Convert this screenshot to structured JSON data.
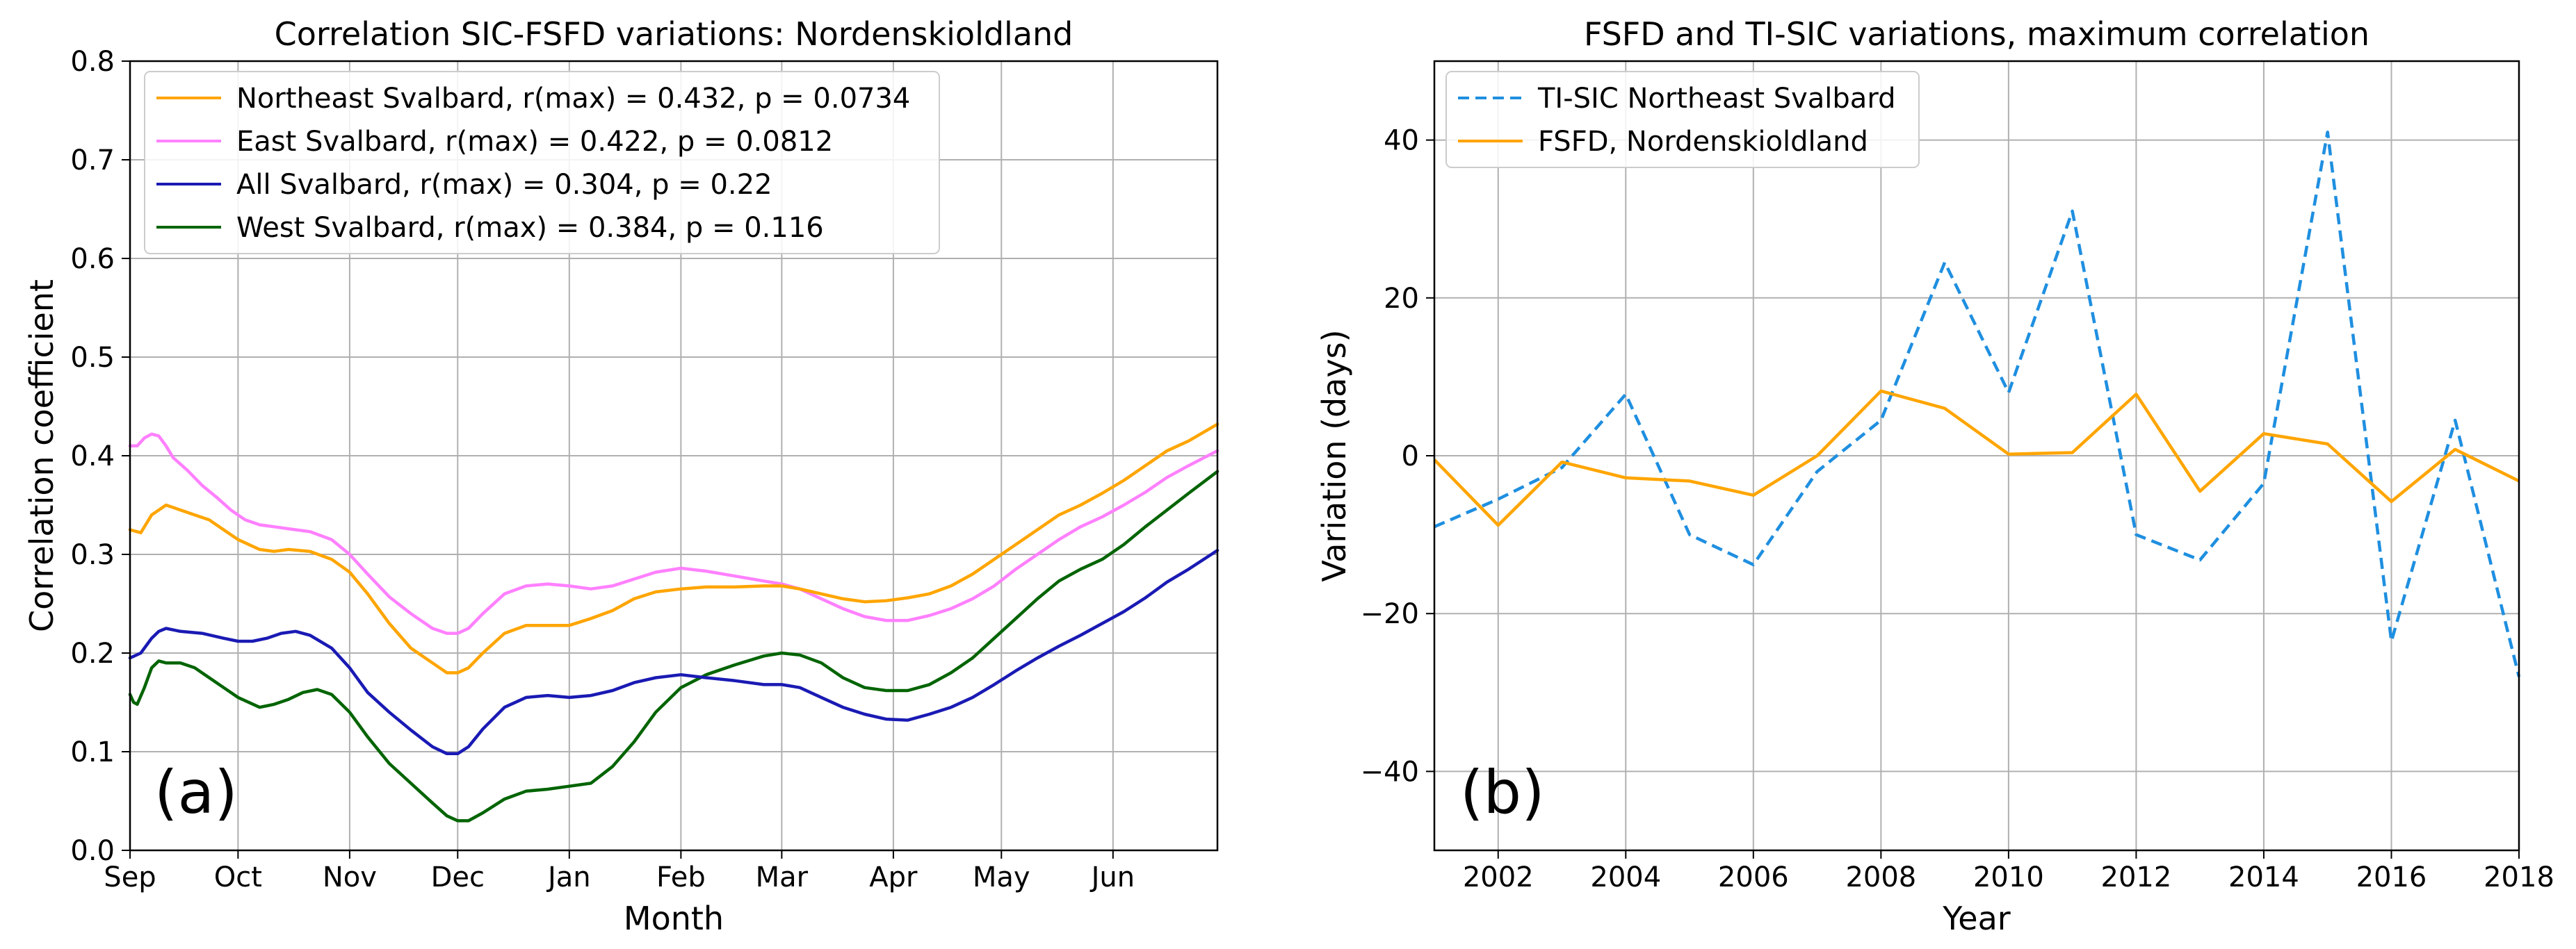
{
  "chart_data": [
    {
      "type": "line",
      "title": "Correlation SIC-FSFD variations: Nordenskioldland",
      "xlabel": "Month",
      "ylabel": "Correlation coefficient",
      "panel_label": "(a)",
      "x_unit": "days since 1 Sep",
      "xlim": [
        0,
        302
      ],
      "ylim": [
        0.0,
        0.8
      ],
      "grid": true,
      "legend_position": "upper-left",
      "x_ticks": [
        {
          "label": "Sep",
          "value": 0
        },
        {
          "label": "Oct",
          "value": 30
        },
        {
          "label": "Nov",
          "value": 61
        },
        {
          "label": "Dec",
          "value": 91
        },
        {
          "label": "Jan",
          "value": 122
        },
        {
          "label": "Feb",
          "value": 153
        },
        {
          "label": "Mar",
          "value": 181
        },
        {
          "label": "Apr",
          "value": 212
        },
        {
          "label": "May",
          "value": 242
        },
        {
          "label": "Jun",
          "value": 273
        }
      ],
      "y_ticks": [
        "0.0",
        "0.1",
        "0.2",
        "0.3",
        "0.4",
        "0.5",
        "0.6",
        "0.7",
        "0.8"
      ],
      "series": [
        {
          "name": "Northeast Svalbard, r(max) = 0.432, p = 0.0734",
          "color": "#ffa500",
          "style": "solid",
          "x": [
            0,
            3,
            6,
            10,
            14,
            18,
            22,
            26,
            30,
            36,
            40,
            44,
            50,
            56,
            61,
            66,
            72,
            78,
            84,
            88,
            91,
            94,
            98,
            104,
            110,
            116,
            122,
            128,
            134,
            140,
            146,
            153,
            160,
            168,
            176,
            181,
            186,
            192,
            198,
            204,
            210,
            216,
            222,
            228,
            234,
            240,
            246,
            252,
            258,
            264,
            270,
            276,
            282,
            288,
            294,
            302
          ],
          "values": [
            0.325,
            0.322,
            0.34,
            0.35,
            0.345,
            0.34,
            0.335,
            0.325,
            0.315,
            0.305,
            0.303,
            0.305,
            0.303,
            0.295,
            0.282,
            0.26,
            0.23,
            0.205,
            0.19,
            0.18,
            0.18,
            0.185,
            0.2,
            0.22,
            0.228,
            0.228,
            0.228,
            0.235,
            0.243,
            0.255,
            0.262,
            0.265,
            0.267,
            0.267,
            0.268,
            0.268,
            0.265,
            0.26,
            0.255,
            0.252,
            0.253,
            0.256,
            0.26,
            0.268,
            0.28,
            0.295,
            0.31,
            0.325,
            0.34,
            0.35,
            0.362,
            0.375,
            0.39,
            0.405,
            0.415,
            0.432
          ]
        },
        {
          "name": "East Svalbard, r(max) = 0.422, p = 0.0812",
          "color": "#ff80ff",
          "style": "solid",
          "x": [
            0,
            2,
            4,
            6,
            8,
            10,
            12,
            16,
            20,
            24,
            28,
            32,
            36,
            40,
            44,
            50,
            56,
            61,
            66,
            72,
            78,
            84,
            88,
            91,
            94,
            98,
            104,
            110,
            116,
            122,
            128,
            134,
            140,
            146,
            153,
            160,
            168,
            176,
            181,
            186,
            192,
            198,
            204,
            210,
            216,
            222,
            228,
            234,
            240,
            246,
            252,
            258,
            264,
            270,
            276,
            282,
            288,
            294,
            302
          ],
          "values": [
            0.41,
            0.41,
            0.418,
            0.422,
            0.42,
            0.41,
            0.398,
            0.385,
            0.37,
            0.358,
            0.345,
            0.335,
            0.33,
            0.328,
            0.326,
            0.323,
            0.315,
            0.3,
            0.28,
            0.257,
            0.24,
            0.225,
            0.22,
            0.22,
            0.225,
            0.24,
            0.26,
            0.268,
            0.27,
            0.268,
            0.265,
            0.268,
            0.275,
            0.282,
            0.286,
            0.283,
            0.278,
            0.273,
            0.27,
            0.265,
            0.255,
            0.245,
            0.237,
            0.233,
            0.233,
            0.238,
            0.245,
            0.255,
            0.268,
            0.285,
            0.3,
            0.315,
            0.328,
            0.338,
            0.35,
            0.363,
            0.378,
            0.39,
            0.405
          ]
        },
        {
          "name": "All Svalbard, r(max) = 0.304, p = 0.22",
          "color": "#1a1ab4",
          "style": "solid",
          "x": [
            0,
            3,
            6,
            8,
            10,
            14,
            20,
            26,
            30,
            34,
            38,
            42,
            46,
            50,
            56,
            61,
            66,
            72,
            78,
            84,
            88,
            91,
            94,
            98,
            104,
            110,
            116,
            122,
            128,
            134,
            140,
            146,
            153,
            160,
            168,
            176,
            181,
            186,
            192,
            198,
            204,
            210,
            216,
            222,
            228,
            234,
            240,
            246,
            252,
            258,
            264,
            270,
            276,
            282,
            288,
            294,
            302
          ],
          "values": [
            0.195,
            0.2,
            0.215,
            0.222,
            0.225,
            0.222,
            0.22,
            0.215,
            0.212,
            0.212,
            0.215,
            0.22,
            0.222,
            0.218,
            0.205,
            0.185,
            0.16,
            0.14,
            0.122,
            0.105,
            0.098,
            0.098,
            0.105,
            0.123,
            0.145,
            0.155,
            0.157,
            0.155,
            0.157,
            0.162,
            0.17,
            0.175,
            0.178,
            0.175,
            0.172,
            0.168,
            0.168,
            0.165,
            0.155,
            0.145,
            0.138,
            0.133,
            0.132,
            0.138,
            0.145,
            0.155,
            0.168,
            0.182,
            0.195,
            0.207,
            0.218,
            0.23,
            0.242,
            0.256,
            0.272,
            0.285,
            0.304
          ]
        },
        {
          "name": "West Svalbard, r(max) = 0.384, p = 0.116",
          "color": "#006400",
          "style": "solid",
          "x": [
            0,
            1,
            2,
            4,
            6,
            8,
            10,
            14,
            18,
            22,
            26,
            30,
            36,
            40,
            44,
            48,
            52,
            56,
            61,
            66,
            72,
            78,
            84,
            88,
            91,
            94,
            98,
            104,
            110,
            116,
            122,
            128,
            134,
            140,
            146,
            153,
            160,
            168,
            176,
            181,
            186,
            192,
            198,
            204,
            210,
            216,
            222,
            228,
            234,
            240,
            246,
            252,
            258,
            264,
            270,
            276,
            282,
            288,
            294,
            302
          ],
          "values": [
            0.158,
            0.15,
            0.148,
            0.165,
            0.185,
            0.192,
            0.19,
            0.19,
            0.185,
            0.175,
            0.165,
            0.155,
            0.145,
            0.148,
            0.153,
            0.16,
            0.163,
            0.158,
            0.14,
            0.115,
            0.088,
            0.068,
            0.048,
            0.035,
            0.03,
            0.03,
            0.038,
            0.052,
            0.06,
            0.062,
            0.065,
            0.068,
            0.085,
            0.11,
            0.14,
            0.165,
            0.178,
            0.188,
            0.197,
            0.2,
            0.198,
            0.19,
            0.175,
            0.165,
            0.162,
            0.162,
            0.168,
            0.18,
            0.195,
            0.215,
            0.235,
            0.255,
            0.273,
            0.285,
            0.295,
            0.31,
            0.328,
            0.345,
            0.362,
            0.384
          ]
        }
      ]
    },
    {
      "type": "line",
      "title": "FSFD and TI-SIC variations, maximum correlation",
      "xlabel": "Year",
      "ylabel": "Variation (days)",
      "panel_label": "(b)",
      "xlim": [
        2001,
        2018
      ],
      "ylim": [
        -50,
        50
      ],
      "grid": true,
      "legend_position": "upper-left",
      "x_ticks": [
        "2002",
        "2004",
        "2006",
        "2008",
        "2010",
        "2012",
        "2014",
        "2016",
        "2018"
      ],
      "y_ticks": [
        "−40",
        "−20",
        "0",
        "20",
        "40"
      ],
      "x": [
        2001,
        2002,
        2003,
        2004,
        2005,
        2006,
        2007,
        2008,
        2009,
        2010,
        2011,
        2012,
        2013,
        2014,
        2015,
        2016,
        2017,
        2018
      ],
      "series": [
        {
          "name": "TI-SIC Northeast Svalbard",
          "color": "#1f8fe0",
          "style": "dashed",
          "values": [
            -9,
            -5.5,
            -1.5,
            7.8,
            -10,
            -13.8,
            -2,
            4.5,
            24.5,
            8,
            31,
            -10,
            -13.2,
            -3.5,
            41,
            -23.5,
            4.5,
            -28
          ]
        },
        {
          "name": "FSFD, Nordenskioldland",
          "color": "#ffa500",
          "style": "solid",
          "values": [
            -0.5,
            -8.8,
            -0.8,
            -2.8,
            -3.2,
            -5,
            0,
            8.2,
            6,
            0.2,
            0.4,
            7.8,
            -4.5,
            2.8,
            1.5,
            -5.8,
            0.8,
            -3.2
          ]
        }
      ]
    }
  ]
}
